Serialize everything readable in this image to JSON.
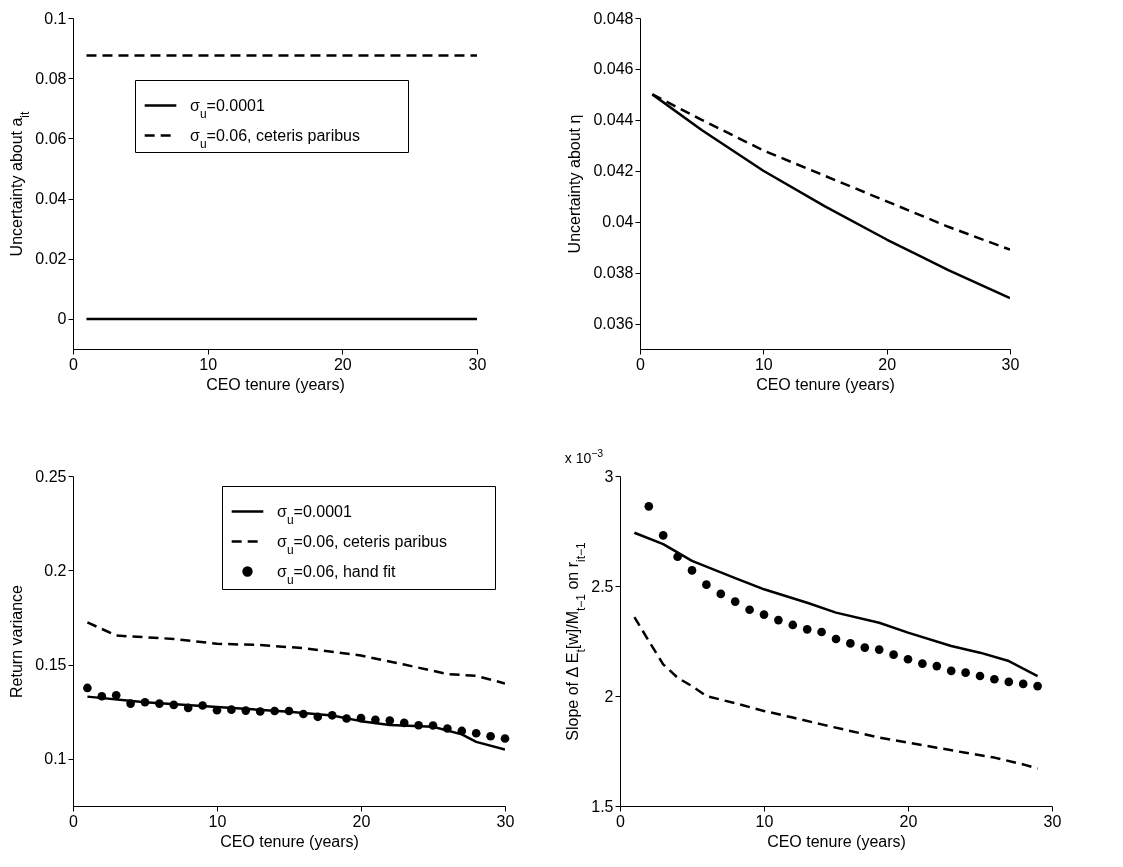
{
  "chart_data": [
    {
      "type": "line",
      "xlabel": "CEO tenure (years)",
      "ylabel": "Uncertainty about a$_{it}$",
      "xlim": [
        0,
        30
      ],
      "xticks": [
        0,
        10,
        20,
        30
      ],
      "ylim": [
        -0.01,
        0.1
      ],
      "yticks": [
        0,
        0.02,
        0.04,
        0.06,
        0.08,
        0.1
      ],
      "grid": false,
      "legend": "top left",
      "series": [
        {
          "name": "σ$_{u}$=0.0001",
          "color": "#000000",
          "line_style": "solid",
          "x": [
            1,
            30
          ],
          "values": [
            0,
            0
          ]
        },
        {
          "name": "σ$_{u}$=0.06, ceteris paribus",
          "color": "#000000",
          "line_style": "dashed",
          "x": [
            1,
            30
          ],
          "values": [
            0.0875,
            0.0875
          ]
        }
      ]
    },
    {
      "type": "line",
      "xlabel": "CEO tenure (years)",
      "ylabel": "Uncertainty about η",
      "xlim": [
        0,
        30
      ],
      "xticks": [
        0,
        10,
        20,
        30
      ],
      "ylim": [
        0.035,
        0.048
      ],
      "yticks": [
        0.036,
        0.038,
        0.04,
        0.042,
        0.044,
        0.046,
        0.048
      ],
      "grid": false,
      "series": [
        {
          "color": "#000000",
          "line_style": "solid",
          "x": [
            1,
            5,
            10,
            15,
            20,
            25,
            30
          ],
          "values": [
            0.045,
            0.0436,
            0.042,
            0.0406,
            0.0393,
            0.0381,
            0.037
          ]
        },
        {
          "color": "#000000",
          "line_style": "dashed",
          "x": [
            1,
            5,
            10,
            15,
            20,
            25,
            30
          ],
          "values": [
            0.045,
            0.044,
            0.0428,
            0.0418,
            0.0408,
            0.0398,
            0.0389
          ]
        }
      ]
    },
    {
      "type": "line",
      "xlabel": "CEO tenure (years)",
      "ylabel": "Return variance",
      "xlim": [
        0,
        30
      ],
      "xticks": [
        0,
        10,
        20,
        30
      ],
      "ylim": [
        0.075,
        0.25
      ],
      "yticks": [
        0.1,
        0.15,
        0.2,
        0.25
      ],
      "grid": false,
      "legend": "top right",
      "series": [
        {
          "name": "σ$_{u}$=0.0001",
          "color": "#000000",
          "line_style": "solid",
          "x": [
            1,
            5,
            10,
            15,
            18,
            20,
            22,
            25,
            27,
            28,
            30
          ],
          "values": [
            0.133,
            0.13,
            0.1275,
            0.125,
            0.123,
            0.12,
            0.118,
            0.117,
            0.113,
            0.109,
            0.105
          ]
        },
        {
          "name": "σ$_{u}$=0.06, ceteris paribus",
          "color": "#000000",
          "line_style": "dashed",
          "x": [
            1,
            3,
            5,
            7,
            10,
            13,
            16,
            20,
            23,
            26,
            28,
            30
          ],
          "values": [
            0.1724,
            0.1654,
            0.1645,
            0.1636,
            0.161,
            0.1604,
            0.1587,
            0.1548,
            0.15,
            0.145,
            0.144,
            0.14
          ]
        },
        {
          "name": "σ$_{u}$=0.06, hand fit",
          "color": "#000000",
          "type": "scatter",
          "marker": "circle",
          "x": [
            1,
            2,
            3,
            4,
            5,
            6,
            7,
            8,
            9,
            10,
            11,
            12,
            13,
            14,
            15,
            16,
            17,
            18,
            19,
            20,
            21,
            22,
            23,
            24,
            25,
            26,
            27,
            28,
            29,
            30
          ],
          "values": [
            0.1376,
            0.1332,
            0.1337,
            0.1293,
            0.13,
            0.1293,
            0.1286,
            0.127,
            0.1283,
            0.1258,
            0.1261,
            0.1256,
            0.1251,
            0.1254,
            0.1254,
            0.1238,
            0.1223,
            0.1231,
            0.1214,
            0.1216,
            0.1207,
            0.1203,
            0.1191,
            0.1178,
            0.1177,
            0.1161,
            0.1148,
            0.1136,
            0.112,
            0.1108
          ]
        }
      ]
    },
    {
      "type": "line",
      "xlabel": "CEO tenure (years)",
      "ylabel": "Slope of Δ E$_{t}$[w]/M$_{t−1}$ on r$_{it−1}$",
      "annotations": [
        "x 10$^{−3}$"
      ],
      "xlim": [
        0,
        30
      ],
      "xticks": [
        0,
        10,
        20,
        30
      ],
      "ylim": [
        1.5,
        3
      ],
      "yticks": [
        1.5,
        2,
        2.5,
        3
      ],
      "grid": false,
      "series": [
        {
          "color": "#000000",
          "line_style": "solid",
          "x": [
            1,
            3,
            5,
            8,
            10,
            13,
            15,
            18,
            20,
            23,
            25,
            27,
            29
          ],
          "values": [
            2.742,
            2.69,
            2.614,
            2.536,
            2.485,
            2.424,
            2.379,
            2.333,
            2.288,
            2.227,
            2.197,
            2.159,
            2.09
          ]
        },
        {
          "color": "#000000",
          "line_style": "dashed",
          "x": [
            1,
            2,
            3,
            4,
            5,
            6,
            8,
            10,
            12,
            14,
            16,
            18,
            20,
            22,
            24,
            26,
            28,
            29
          ],
          "values": [
            2.359,
            2.25,
            2.144,
            2.083,
            2.045,
            2.0,
            1.967,
            1.932,
            1.902,
            1.871,
            1.841,
            1.811,
            1.788,
            1.765,
            1.742,
            1.72,
            1.689,
            1.67
          ]
        },
        {
          "color": "#000000",
          "type": "scatter",
          "marker": "circle",
          "x": [
            2,
            3,
            4,
            5,
            6,
            7,
            8,
            9,
            10,
            11,
            12,
            13,
            14,
            15,
            16,
            17,
            18,
            19,
            20,
            21,
            22,
            23,
            24,
            25,
            26,
            27,
            28,
            29
          ],
          "values": [
            2.862,
            2.73,
            2.633,
            2.571,
            2.506,
            2.464,
            2.429,
            2.392,
            2.37,
            2.345,
            2.323,
            2.303,
            2.291,
            2.259,
            2.239,
            2.22,
            2.211,
            2.188,
            2.167,
            2.147,
            2.136,
            2.114,
            2.106,
            2.091,
            2.076,
            2.064,
            2.055,
            2.045
          ]
        }
      ]
    }
  ]
}
